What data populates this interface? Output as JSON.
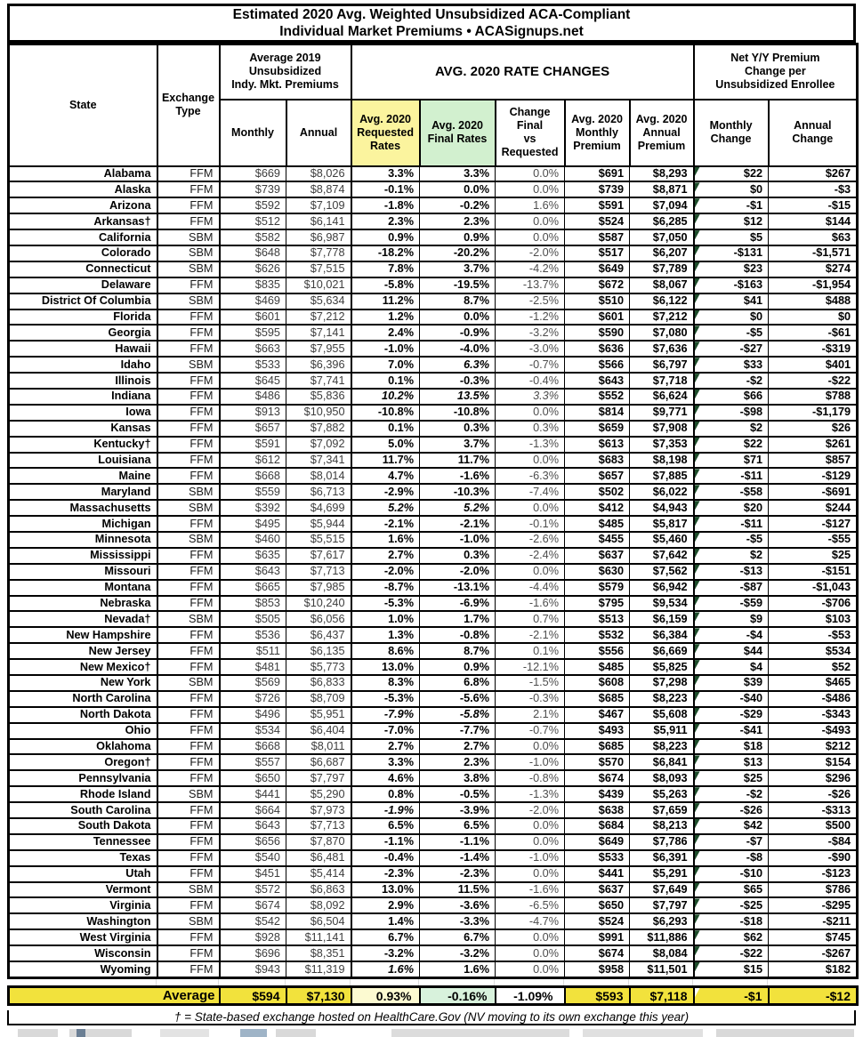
{
  "title": {
    "line1": "Estimated 2020 Avg. Weighted Unsubsidized ACA-Compliant",
    "line2": "Individual Market Premiums • ACASignups.net"
  },
  "header": {
    "state": "State",
    "exchange_type": "Exchange\nType",
    "group_2019": "Average 2019\nUnsubsidized\nIndy. Mkt. Premiums",
    "group_2020": "AVG. 2020 RATE CHANGES",
    "group_net": "Net Y/Y Premium\nChange per\nUnsubsidized Enrollee",
    "monthly": "Monthly",
    "annual": "Annual",
    "requested": "Avg. 2020\nRequested\nRates",
    "final": "Avg. 2020\nFinal Rates",
    "change_vs": "Change\nFinal\nvs\nRequested",
    "monthly_premium": "Avg. 2020\nMonthly\nPremium",
    "annual_premium": "Avg. 2020\nAnnual\nPremium",
    "monthly_change": "Monthly\nChange",
    "annual_change": "Annual\nChange"
  },
  "rows": [
    [
      "Alabama",
      "FFM",
      "$669",
      "$8,026",
      "3.3%",
      "3.3%",
      "0.0%",
      "$691",
      "$8,293",
      "$22",
      "$267",
      ""
    ],
    [
      "Alaska",
      "FFM",
      "$739",
      "$8,874",
      "-0.1%",
      "0.0%",
      "0.0%",
      "$739",
      "$8,871",
      "$0",
      "-$3",
      ""
    ],
    [
      "Arizona",
      "FFM",
      "$592",
      "$7,109",
      "-1.8%",
      "-0.2%",
      "1.6%",
      "$591",
      "$7,094",
      "-$1",
      "-$15",
      ""
    ],
    [
      "Arkansas†",
      "FFM",
      "$512",
      "$6,141",
      "2.3%",
      "2.3%",
      "0.0%",
      "$524",
      "$6,285",
      "$12",
      "$144",
      ""
    ],
    [
      "California",
      "SBM",
      "$582",
      "$6,987",
      "0.9%",
      "0.9%",
      "0.0%",
      "$587",
      "$7,050",
      "$5",
      "$63",
      ""
    ],
    [
      "Colorado",
      "SBM",
      "$648",
      "$7,778",
      "-18.2%",
      "-20.2%",
      "-2.0%",
      "$517",
      "$6,207",
      "-$131",
      "-$1,571",
      ""
    ],
    [
      "Connecticut",
      "SBM",
      "$626",
      "$7,515",
      "7.8%",
      "3.7%",
      "-4.2%",
      "$649",
      "$7,789",
      "$23",
      "$274",
      ""
    ],
    [
      "Delaware",
      "FFM",
      "$835",
      "$10,021",
      "-5.8%",
      "-19.5%",
      "-13.7%",
      "$672",
      "$8,067",
      "-$163",
      "-$1,954",
      ""
    ],
    [
      "District Of Columbia",
      "SBM",
      "$469",
      "$5,634",
      "11.2%",
      "8.7%",
      "-2.5%",
      "$510",
      "$6,122",
      "$41",
      "$488",
      ""
    ],
    [
      "Florida",
      "FFM",
      "$601",
      "$7,212",
      "1.2%",
      "0.0%",
      "-1.2%",
      "$601",
      "$7,212",
      "$0",
      "$0",
      ""
    ],
    [
      "Georgia",
      "FFM",
      "$595",
      "$7,141",
      "2.4%",
      "-0.9%",
      "-3.2%",
      "$590",
      "$7,080",
      "-$5",
      "-$61",
      ""
    ],
    [
      "Hawaii",
      "FFM",
      "$663",
      "$7,955",
      "-1.0%",
      "-4.0%",
      "-3.0%",
      "$636",
      "$7,636",
      "-$27",
      "-$319",
      ""
    ],
    [
      "Idaho",
      "SBM",
      "$533",
      "$6,396",
      "7.0%",
      "6.3%",
      "-0.7%",
      "$566",
      "$6,797",
      "$33",
      "$401",
      "fi,fo"
    ],
    [
      "Illinois",
      "FFM",
      "$645",
      "$7,741",
      "0.1%",
      "-0.3%",
      "-0.4%",
      "$643",
      "$7,718",
      "-$2",
      "-$22",
      ""
    ],
    [
      "Indiana",
      "FFM",
      "$486",
      "$5,836",
      "10.2%",
      "13.5%",
      "3.3%",
      "$552",
      "$6,624",
      "$66",
      "$788",
      "ri,fi,fo,ci"
    ],
    [
      "Iowa",
      "FFM",
      "$913",
      "$10,950",
      "-10.8%",
      "-10.8%",
      "0.0%",
      "$814",
      "$9,771",
      "-$98",
      "-$1,179",
      ""
    ],
    [
      "Kansas",
      "FFM",
      "$657",
      "$7,882",
      "0.1%",
      "0.3%",
      "0.3%",
      "$659",
      "$7,908",
      "$2",
      "$26",
      ""
    ],
    [
      "Kentucky†",
      "FFM",
      "$591",
      "$7,092",
      "5.0%",
      "3.7%",
      "-1.3%",
      "$613",
      "$7,353",
      "$22",
      "$261",
      ""
    ],
    [
      "Louisiana",
      "FFM",
      "$612",
      "$7,341",
      "11.7%",
      "11.7%",
      "0.0%",
      "$683",
      "$8,198",
      "$71",
      "$857",
      ""
    ],
    [
      "Maine",
      "FFM",
      "$668",
      "$8,014",
      "4.7%",
      "-1.6%",
      "-6.3%",
      "$657",
      "$7,885",
      "-$11",
      "-$129",
      ""
    ],
    [
      "Maryland",
      "SBM",
      "$559",
      "$6,713",
      "-2.9%",
      "-10.3%",
      "-7.4%",
      "$502",
      "$6,022",
      "-$58",
      "-$691",
      ""
    ],
    [
      "Massachusetts",
      "SBM",
      "$392",
      "$4,699",
      "5.2%",
      "5.2%",
      "0.0%",
      "$412",
      "$4,943",
      "$20",
      "$244",
      "ri,fi,fo"
    ],
    [
      "Michigan",
      "FFM",
      "$495",
      "$5,944",
      "-2.1%",
      "-2.1%",
      "-0.1%",
      "$485",
      "$5,817",
      "-$11",
      "-$127",
      ""
    ],
    [
      "Minnesota",
      "SBM",
      "$460",
      "$5,515",
      "1.6%",
      "-1.0%",
      "-2.6%",
      "$455",
      "$5,460",
      "-$5",
      "-$55",
      ""
    ],
    [
      "Mississippi",
      "FFM",
      "$635",
      "$7,617",
      "2.7%",
      "0.3%",
      "-2.4%",
      "$637",
      "$7,642",
      "$2",
      "$25",
      ""
    ],
    [
      "Missouri",
      "FFM",
      "$643",
      "$7,713",
      "-2.0%",
      "-2.0%",
      "0.0%",
      "$630",
      "$7,562",
      "-$13",
      "-$151",
      ""
    ],
    [
      "Montana",
      "FFM",
      "$665",
      "$7,985",
      "-8.7%",
      "-13.1%",
      "-4.4%",
      "$579",
      "$6,942",
      "-$87",
      "-$1,043",
      ""
    ],
    [
      "Nebraska",
      "FFM",
      "$853",
      "$10,240",
      "-5.3%",
      "-6.9%",
      "-1.6%",
      "$795",
      "$9,534",
      "-$59",
      "-$706",
      ""
    ],
    [
      "Nevada†",
      "SBM",
      "$505",
      "$6,056",
      "1.0%",
      "1.7%",
      "0.7%",
      "$513",
      "$6,159",
      "$9",
      "$103",
      ""
    ],
    [
      "New Hampshire",
      "FFM",
      "$536",
      "$6,437",
      "1.3%",
      "-0.8%",
      "-2.1%",
      "$532",
      "$6,384",
      "-$4",
      "-$53",
      ""
    ],
    [
      "New Jersey",
      "FFM",
      "$511",
      "$6,135",
      "8.6%",
      "8.7%",
      "0.1%",
      "$556",
      "$6,669",
      "$44",
      "$534",
      ""
    ],
    [
      "New Mexico†",
      "FFM",
      "$481",
      "$5,773",
      "13.0%",
      "0.9%",
      "-12.1%",
      "$485",
      "$5,825",
      "$4",
      "$52",
      ""
    ],
    [
      "New York",
      "SBM",
      "$569",
      "$6,833",
      "8.3%",
      "6.8%",
      "-1.5%",
      "$608",
      "$7,298",
      "$39",
      "$465",
      ""
    ],
    [
      "North Carolina",
      "FFM",
      "$726",
      "$8,709",
      "-5.3%",
      "-5.6%",
      "-0.3%",
      "$685",
      "$8,223",
      "-$40",
      "-$486",
      ""
    ],
    [
      "North Dakota",
      "FFM",
      "$496",
      "$5,951",
      "-7.9%",
      "-5.8%",
      "2.1%",
      "$467",
      "$5,608",
      "-$29",
      "-$343",
      "ri,fi"
    ],
    [
      "Ohio",
      "FFM",
      "$534",
      "$6,404",
      "-7.0%",
      "-7.7%",
      "-0.7%",
      "$493",
      "$5,911",
      "-$41",
      "-$493",
      ""
    ],
    [
      "Oklahoma",
      "FFM",
      "$668",
      "$8,011",
      "2.7%",
      "2.7%",
      "0.0%",
      "$685",
      "$8,223",
      "$18",
      "$212",
      ""
    ],
    [
      "Oregon†",
      "FFM",
      "$557",
      "$6,687",
      "3.3%",
      "2.3%",
      "-1.0%",
      "$570",
      "$6,841",
      "$13",
      "$154",
      ""
    ],
    [
      "Pennsylvania",
      "FFM",
      "$650",
      "$7,797",
      "4.6%",
      "3.8%",
      "-0.8%",
      "$674",
      "$8,093",
      "$25",
      "$296",
      ""
    ],
    [
      "Rhode Island",
      "SBM",
      "$441",
      "$5,290",
      "0.8%",
      "-0.5%",
      "-1.3%",
      "$439",
      "$5,263",
      "-$2",
      "-$26",
      ""
    ],
    [
      "South Carolina",
      "FFM",
      "$664",
      "$7,973",
      "-1.9%",
      "-3.9%",
      "-2.0%",
      "$638",
      "$7,659",
      "-$26",
      "-$313",
      "ri"
    ],
    [
      "South Dakota",
      "FFM",
      "$643",
      "$7,713",
      "6.5%",
      "6.5%",
      "0.0%",
      "$684",
      "$8,213",
      "$42",
      "$500",
      ""
    ],
    [
      "Tennessee",
      "FFM",
      "$656",
      "$7,870",
      "-1.1%",
      "-1.1%",
      "0.0%",
      "$649",
      "$7,786",
      "-$7",
      "-$84",
      ""
    ],
    [
      "Texas",
      "FFM",
      "$540",
      "$6,481",
      "-0.4%",
      "-1.4%",
      "-1.0%",
      "$533",
      "$6,391",
      "-$8",
      "-$90",
      ""
    ],
    [
      "Utah",
      "FFM",
      "$451",
      "$5,414",
      "-2.3%",
      "-2.3%",
      "0.0%",
      "$441",
      "$5,291",
      "-$10",
      "-$123",
      ""
    ],
    [
      "Vermont",
      "SBM",
      "$572",
      "$6,863",
      "13.0%",
      "11.5%",
      "-1.6%",
      "$637",
      "$7,649",
      "$65",
      "$786",
      ""
    ],
    [
      "Virginia",
      "FFM",
      "$674",
      "$8,092",
      "2.9%",
      "-3.6%",
      "-6.5%",
      "$650",
      "$7,797",
      "-$25",
      "-$295",
      ""
    ],
    [
      "Washington",
      "SBM",
      "$542",
      "$6,504",
      "1.4%",
      "-3.3%",
      "-4.7%",
      "$524",
      "$6,293",
      "-$18",
      "-$211",
      ""
    ],
    [
      "West Virginia",
      "FFM",
      "$928",
      "$11,141",
      "6.7%",
      "6.7%",
      "0.0%",
      "$991",
      "$11,886",
      "$62",
      "$745",
      ""
    ],
    [
      "Wisconsin",
      "FFM",
      "$696",
      "$8,351",
      "-3.2%",
      "-3.2%",
      "0.0%",
      "$674",
      "$8,084",
      "-$22",
      "-$267",
      ""
    ],
    [
      "Wyoming",
      "FFM",
      "$943",
      "$11,319",
      "1.6%",
      "1.6%",
      "0.0%",
      "$958",
      "$11,501",
      "$15",
      "$182",
      "ri"
    ]
  ],
  "average": {
    "label": "Average",
    "monthly_2019": "$594",
    "annual_2019": "$7,130",
    "requested": "0.93%",
    "final": "-0.16%",
    "change_vs": "-1.09%",
    "monthly_premium": "$593",
    "annual_premium": "$7,118",
    "monthly_change": "-$1",
    "annual_change": "-$12"
  },
  "footnote": "† = State-based exchange hosted on HealthCare.Gov (NV moving to its own exchange this year)",
  "colors": {
    "cell_yellow": "#FBF49E",
    "cell_green": "#D2F0CF",
    "cell_orange": "#FBBE8D",
    "avg_yellow": "#F2E23C",
    "avg_cream": "#FCFAD1",
    "avg_green": "#D8F2DC",
    "triangle_green": "#1E4D2B"
  }
}
